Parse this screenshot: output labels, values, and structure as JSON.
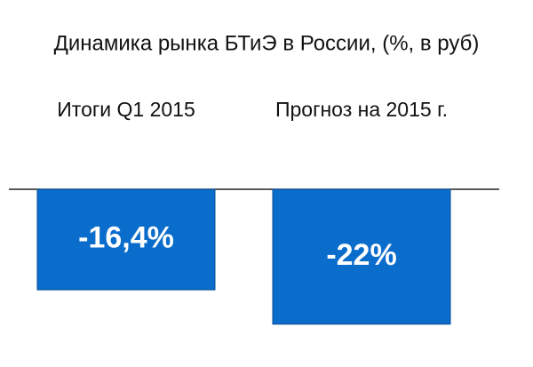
{
  "chart_data": {
    "type": "bar",
    "title": "Динамика рынка БТиЭ в России, (%, в руб)",
    "categories": [
      "Итоги Q1 2015",
      "Прогноз на 2015 г."
    ],
    "values": [
      -16.4,
      -22
    ],
    "value_labels": [
      "-16,4%",
      "-22%"
    ],
    "color": "#0a6ccb"
  }
}
